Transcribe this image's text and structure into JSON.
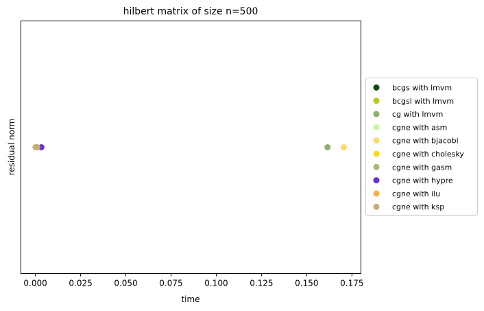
{
  "chart_data": {
    "type": "scatter",
    "title": "hilbert matrix of size n=500",
    "xlabel": "time",
    "ylabel": "residual norm",
    "xlim": [
      -0.008,
      0.18
    ],
    "ylim": [
      -1,
      1
    ],
    "x_ticks": [
      0.0,
      0.025,
      0.05,
      0.075,
      0.1,
      0.125,
      0.15,
      0.175
    ],
    "x_tick_labels": [
      "0.000",
      "0.025",
      "0.050",
      "0.075",
      "0.100",
      "0.125",
      "0.150",
      "0.175"
    ],
    "grid": false,
    "legend_position": "right-outside",
    "series": [
      {
        "name": "bcgs with lmvm",
        "color": "#0e4a12",
        "points": [
          {
            "x": 0.0002,
            "y": 0
          }
        ]
      },
      {
        "name": "bcgsl with lmvm",
        "color": "#b5c917",
        "points": [
          {
            "x": 0.0003,
            "y": 0
          }
        ]
      },
      {
        "name": "cg with lmvm",
        "color": "#8fb06a",
        "points": [
          {
            "x": 0.0001,
            "y": 0
          },
          {
            "x": 0.1615,
            "y": 0
          }
        ]
      },
      {
        "name": "cgne with asm",
        "color": "#ccf5a8",
        "points": [
          {
            "x": 0.0005,
            "y": 0
          }
        ]
      },
      {
        "name": "cgne with bjacobi",
        "color": "#fbda6b",
        "points": [
          {
            "x": 0.0007,
            "y": 0
          },
          {
            "x": 0.1705,
            "y": 0
          }
        ]
      },
      {
        "name": "cgne with cholesky",
        "color": "#f6d91d",
        "points": [
          {
            "x": 0.0004,
            "y": 0
          }
        ]
      },
      {
        "name": "cgne with gasm",
        "color": "#a9bb72",
        "points": [
          {
            "x": 0.0006,
            "y": 0
          }
        ]
      },
      {
        "name": "cgne with hypre",
        "color": "#6431d6",
        "points": [
          {
            "x": 0.0033,
            "y": 0
          }
        ]
      },
      {
        "name": "cgne with ilu",
        "color": "#f2b245",
        "points": [
          {
            "x": 0.0008,
            "y": 0
          }
        ]
      },
      {
        "name": "cgne with ksp",
        "color": "#c8aa7c",
        "points": [
          {
            "x": 0.001,
            "y": 0
          }
        ]
      }
    ]
  }
}
